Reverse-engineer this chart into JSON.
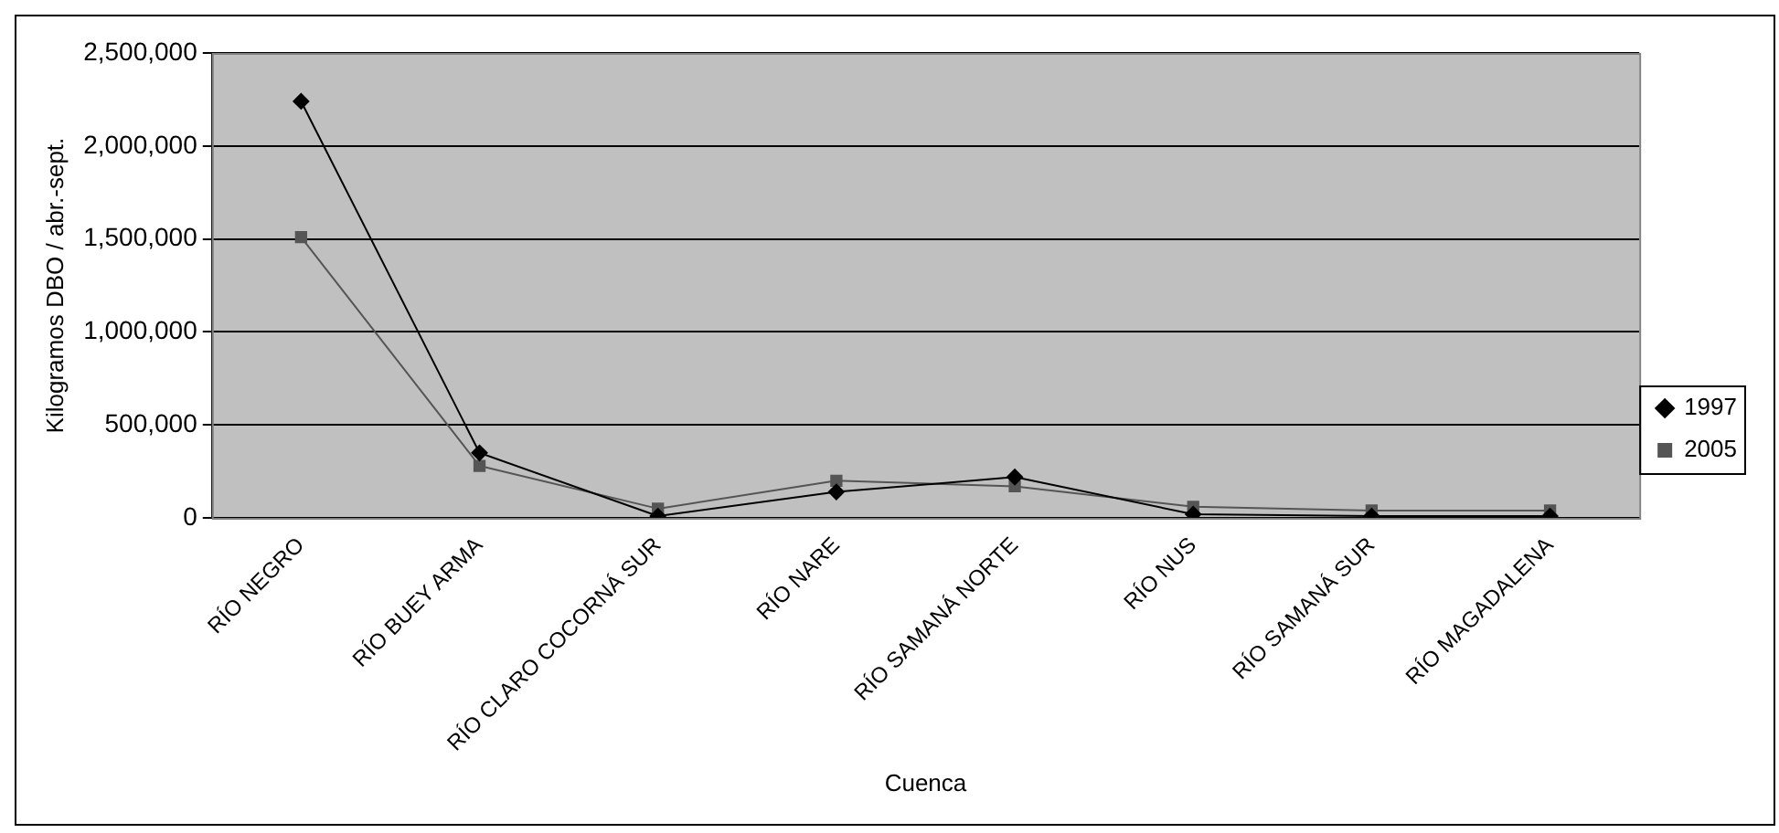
{
  "chart_data": {
    "type": "line",
    "xlabel": "Cuenca",
    "ylabel": "Kilogramos DBO / abr.-sept.",
    "categories": [
      "RÍO NEGRO",
      "RÍO BUEY ARMA",
      "RÍO CLARO COCORNÁ SUR",
      "RÍO NARE",
      "RÍO SAMANÁ NORTE",
      "RÍO NUS",
      "RÍO SAMANÁ SUR",
      "RÍO MAGADALENA"
    ],
    "series": [
      {
        "name": "1997",
        "color": "#000000",
        "marker": "diamond",
        "values": [
          2240000,
          350000,
          10000,
          140000,
          220000,
          20000,
          10000,
          10000
        ]
      },
      {
        "name": "2005",
        "color": "#555555",
        "marker": "square",
        "values": [
          1510000,
          280000,
          50000,
          200000,
          170000,
          60000,
          40000,
          40000
        ]
      }
    ],
    "ylim": [
      0,
      2500000
    ],
    "yticks": [
      {
        "value": 0,
        "label": "0"
      },
      {
        "value": 500000,
        "label": "500,000"
      },
      {
        "value": 1000000,
        "label": "1,000,000"
      },
      {
        "value": 1500000,
        "label": "1,500,000"
      },
      {
        "value": 2000000,
        "label": "2,000,000"
      },
      {
        "value": 2500000,
        "label": "2,500,000"
      }
    ],
    "grid": "y",
    "legend": "right",
    "line_style": "solid"
  }
}
